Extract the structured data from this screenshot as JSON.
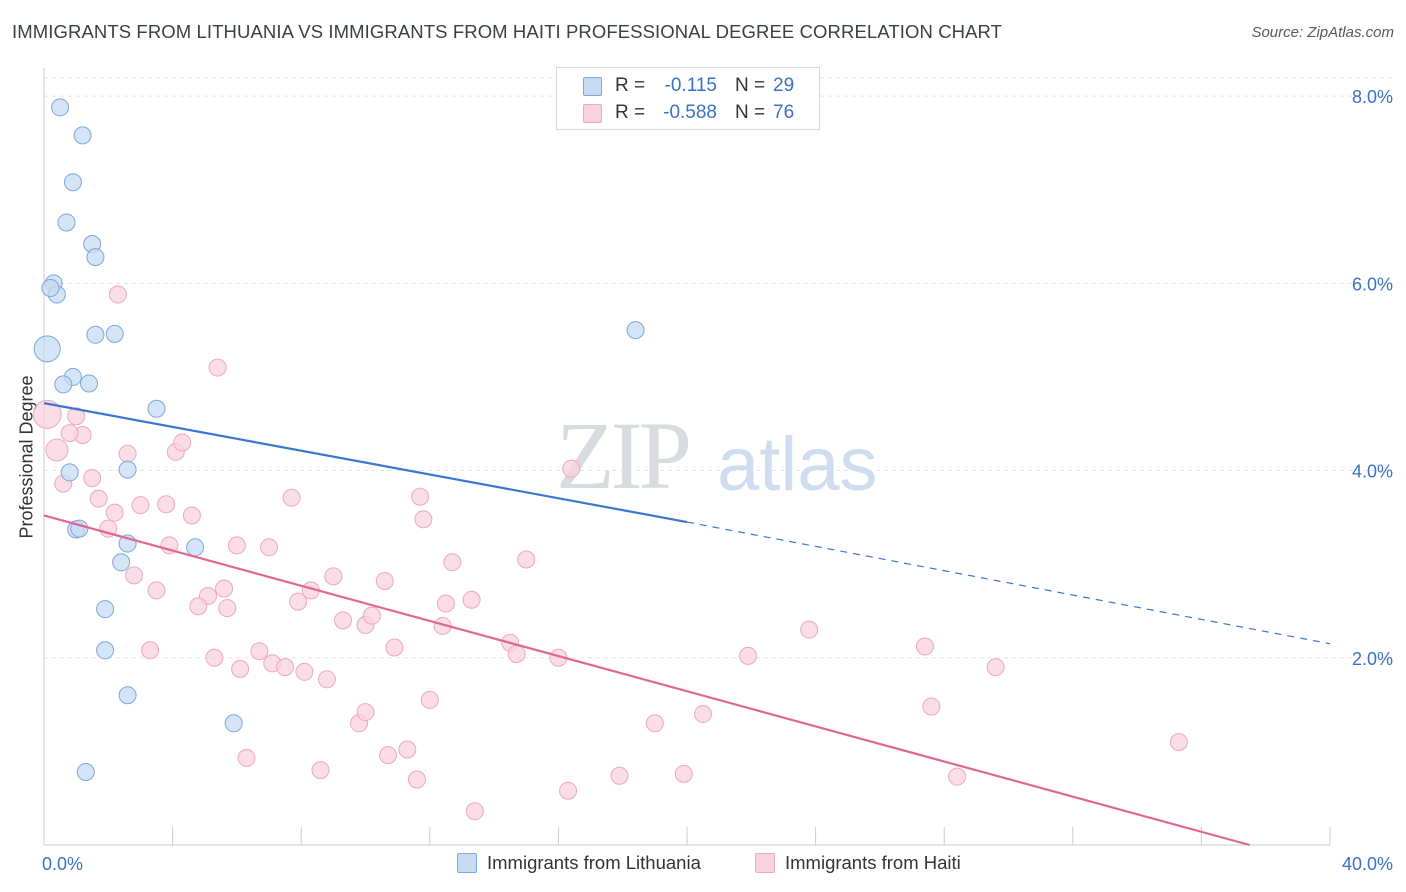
{
  "chart_data": {
    "type": "scatter",
    "title": "IMMIGRANTS FROM LITHUANIA VS IMMIGRANTS FROM HAITI PROFESSIONAL DEGREE CORRELATION CHART",
    "source": "Source: ZipAtlas.com",
    "xlabel": "",
    "ylabel": "Professional Degree",
    "xlim": [
      0,
      40
    ],
    "ylim": [
      0,
      8.3
    ],
    "x_tick_labels": [
      {
        "value": 0,
        "label": "0.0%"
      },
      {
        "value": 40,
        "label": "40.0%"
      }
    ],
    "y_ticks": [
      {
        "value": 2,
        "label": "2.0%"
      },
      {
        "value": 4,
        "label": "4.0%"
      },
      {
        "value": 6,
        "label": "6.0%"
      },
      {
        "value": 8,
        "label": "8.0%"
      }
    ],
    "watermark": {
      "zip": "ZIP",
      "atlas": "atlas"
    },
    "legend": [
      {
        "r_label": "R =",
        "r_value": "-0.115",
        "n_label": "N =",
        "n_value": "29"
      },
      {
        "r_label": "R =",
        "r_value": "-0.588",
        "n_label": "N =",
        "n_value": "76"
      }
    ],
    "series": [
      {
        "name": "Immigrants from Lithuania",
        "color": "#7ea7dd",
        "fill": "#c7dbf3",
        "line_color": "#3a77d0",
        "trend": {
          "x0": 0,
          "y0": 4.72,
          "x1": 20,
          "y1": 3.45,
          "dash_to_x": 40,
          "dash_to_y": 2.15
        },
        "points": [
          {
            "x": 0.5,
            "y": 7.88
          },
          {
            "x": 1.2,
            "y": 7.58
          },
          {
            "x": 0.9,
            "y": 7.08
          },
          {
            "x": 0.7,
            "y": 6.65
          },
          {
            "x": 1.5,
            "y": 6.42
          },
          {
            "x": 1.6,
            "y": 6.28
          },
          {
            "x": 0.3,
            "y": 6.0
          },
          {
            "x": 0.4,
            "y": 5.88
          },
          {
            "x": 0.2,
            "y": 5.95
          },
          {
            "x": 1.6,
            "y": 5.45
          },
          {
            "x": 2.2,
            "y": 5.46
          },
          {
            "x": 18.4,
            "y": 5.5
          },
          {
            "x": 0.1,
            "y": 5.3,
            "r": 13
          },
          {
            "x": 0.9,
            "y": 5.0
          },
          {
            "x": 0.6,
            "y": 4.92
          },
          {
            "x": 1.4,
            "y": 4.93
          },
          {
            "x": 3.5,
            "y": 4.66
          },
          {
            "x": 0.8,
            "y": 3.98
          },
          {
            "x": 2.6,
            "y": 4.01
          },
          {
            "x": 1.0,
            "y": 3.37
          },
          {
            "x": 1.1,
            "y": 3.38
          },
          {
            "x": 2.6,
            "y": 3.22
          },
          {
            "x": 4.7,
            "y": 3.18
          },
          {
            "x": 2.4,
            "y": 3.02
          },
          {
            "x": 1.9,
            "y": 2.52
          },
          {
            "x": 1.9,
            "y": 2.08
          },
          {
            "x": 2.6,
            "y": 1.6
          },
          {
            "x": 5.9,
            "y": 1.3
          },
          {
            "x": 1.3,
            "y": 0.78
          }
        ]
      },
      {
        "name": "Immigrants from Haiti",
        "color": "#eea8bf",
        "fill": "#f8d2de",
        "line_color": "#e06792",
        "trend": {
          "x0": 0,
          "y0": 3.52,
          "x1": 37.5,
          "y1": 0.0
        },
        "points": [
          {
            "x": 0.1,
            "y": 4.6,
            "r": 14
          },
          {
            "x": 1.0,
            "y": 4.58
          },
          {
            "x": 1.2,
            "y": 4.38
          },
          {
            "x": 0.8,
            "y": 4.4
          },
          {
            "x": 0.4,
            "y": 4.22,
            "r": 11
          },
          {
            "x": 2.6,
            "y": 4.18
          },
          {
            "x": 4.1,
            "y": 4.2
          },
          {
            "x": 4.3,
            "y": 4.3
          },
          {
            "x": 0.6,
            "y": 3.86
          },
          {
            "x": 1.5,
            "y": 3.92
          },
          {
            "x": 1.7,
            "y": 3.7
          },
          {
            "x": 2.2,
            "y": 3.55
          },
          {
            "x": 3.0,
            "y": 3.63
          },
          {
            "x": 3.8,
            "y": 3.64
          },
          {
            "x": 4.6,
            "y": 3.52
          },
          {
            "x": 2.0,
            "y": 3.38
          },
          {
            "x": 7.7,
            "y": 3.71
          },
          {
            "x": 11.7,
            "y": 3.72
          },
          {
            "x": 11.8,
            "y": 3.48
          },
          {
            "x": 16.4,
            "y": 4.02
          },
          {
            "x": 3.9,
            "y": 3.2
          },
          {
            "x": 6.0,
            "y": 3.2
          },
          {
            "x": 7.0,
            "y": 3.18
          },
          {
            "x": 12.7,
            "y": 3.02
          },
          {
            "x": 15.0,
            "y": 3.05
          },
          {
            "x": 2.8,
            "y": 2.88
          },
          {
            "x": 3.5,
            "y": 2.72
          },
          {
            "x": 5.6,
            "y": 2.74
          },
          {
            "x": 5.1,
            "y": 2.66
          },
          {
            "x": 8.3,
            "y": 2.72
          },
          {
            "x": 9.0,
            "y": 2.87
          },
          {
            "x": 10.6,
            "y": 2.82
          },
          {
            "x": 4.8,
            "y": 2.55
          },
          {
            "x": 5.7,
            "y": 2.53
          },
          {
            "x": 7.9,
            "y": 2.6
          },
          {
            "x": 12.5,
            "y": 2.58
          },
          {
            "x": 13.3,
            "y": 2.62
          },
          {
            "x": 9.3,
            "y": 2.4
          },
          {
            "x": 10.0,
            "y": 2.35
          },
          {
            "x": 10.2,
            "y": 2.45
          },
          {
            "x": 12.4,
            "y": 2.34
          },
          {
            "x": 14.5,
            "y": 2.16
          },
          {
            "x": 14.7,
            "y": 2.04
          },
          {
            "x": 3.3,
            "y": 2.08
          },
          {
            "x": 6.7,
            "y": 2.07
          },
          {
            "x": 10.9,
            "y": 2.11
          },
          {
            "x": 16.0,
            "y": 2.0
          },
          {
            "x": 21.9,
            "y": 2.02
          },
          {
            "x": 23.8,
            "y": 2.3
          },
          {
            "x": 27.4,
            "y": 2.12
          },
          {
            "x": 5.3,
            "y": 2.0
          },
          {
            "x": 6.1,
            "y": 1.88
          },
          {
            "x": 7.1,
            "y": 1.94
          },
          {
            "x": 7.5,
            "y": 1.9
          },
          {
            "x": 8.1,
            "y": 1.85
          },
          {
            "x": 8.8,
            "y": 1.77
          },
          {
            "x": 29.6,
            "y": 1.9
          },
          {
            "x": 12.0,
            "y": 1.55
          },
          {
            "x": 9.8,
            "y": 1.3
          },
          {
            "x": 10.0,
            "y": 1.42
          },
          {
            "x": 19.0,
            "y": 1.3
          },
          {
            "x": 20.5,
            "y": 1.4
          },
          {
            "x": 27.6,
            "y": 1.48
          },
          {
            "x": 6.3,
            "y": 0.93
          },
          {
            "x": 10.7,
            "y": 0.96
          },
          {
            "x": 11.3,
            "y": 1.02
          },
          {
            "x": 8.6,
            "y": 0.8
          },
          {
            "x": 11.6,
            "y": 0.7
          },
          {
            "x": 17.9,
            "y": 0.74
          },
          {
            "x": 19.9,
            "y": 0.76
          },
          {
            "x": 28.4,
            "y": 0.73
          },
          {
            "x": 35.3,
            "y": 1.1
          },
          {
            "x": 16.3,
            "y": 0.58
          },
          {
            "x": 13.4,
            "y": 0.36
          },
          {
            "x": 2.3,
            "y": 5.88
          },
          {
            "x": 5.4,
            "y": 5.1
          }
        ]
      }
    ]
  }
}
